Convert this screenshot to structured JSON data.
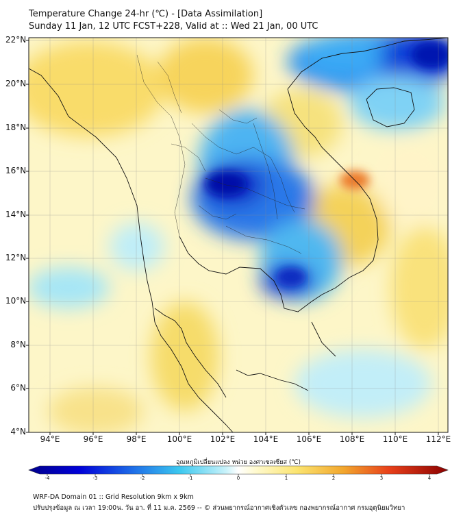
{
  "title": {
    "line1": "Temperature Change 24-hr (℃) - [Data Assimilation]",
    "line2": "Sunday 11 Jan, 12 UTC FCST+228, Valid at :: Wed 21 Jan, 00 UTC"
  },
  "map": {
    "lat_labels": [
      "22°N",
      "20°N",
      "18°N",
      "16°N",
      "14°N",
      "12°N",
      "10°N",
      "8°N",
      "6°N",
      "4°N"
    ],
    "lon_labels": [
      "94°E",
      "96°E",
      "98°E",
      "100°E",
      "102°E",
      "104°E",
      "106°E",
      "108°E",
      "110°E",
      "112°E"
    ],
    "lat_range": [
      4,
      22
    ],
    "lon_range": [
      93,
      112.5
    ]
  },
  "colorbar": {
    "title": "อุณหภูมิเปลี่ยนแปลง หน่วย องศาเซลเซียส (℃)",
    "ticks": [
      "-4",
      "-3",
      "-2",
      "-1",
      "0",
      "1",
      "2",
      "3",
      "4"
    ],
    "range": [
      -4,
      4
    ]
  },
  "footer": {
    "line1": "WRF-DA Domain 01 :: Grid Resolution 9km x 9km",
    "line2": "ปรับปรุงข้อมูล ณ เวลา 19:00น. วัน อา. ที่ 11 ม.ค. 2569 -- © ส่วนพยากรณ์อากาศเชิงตัวเลข กองพยากรณ์อากาศ กรมอุตุนิยมวิทยา"
  },
  "colors": {
    "neg_max": "#00008b",
    "neg_mid": "#2f8ff0",
    "neg_low": "#aeeaf8",
    "zero": "#ffffff",
    "pos_low": "#fff4a8",
    "pos_mid": "#f2b43a",
    "pos_max": "#8b0000"
  }
}
